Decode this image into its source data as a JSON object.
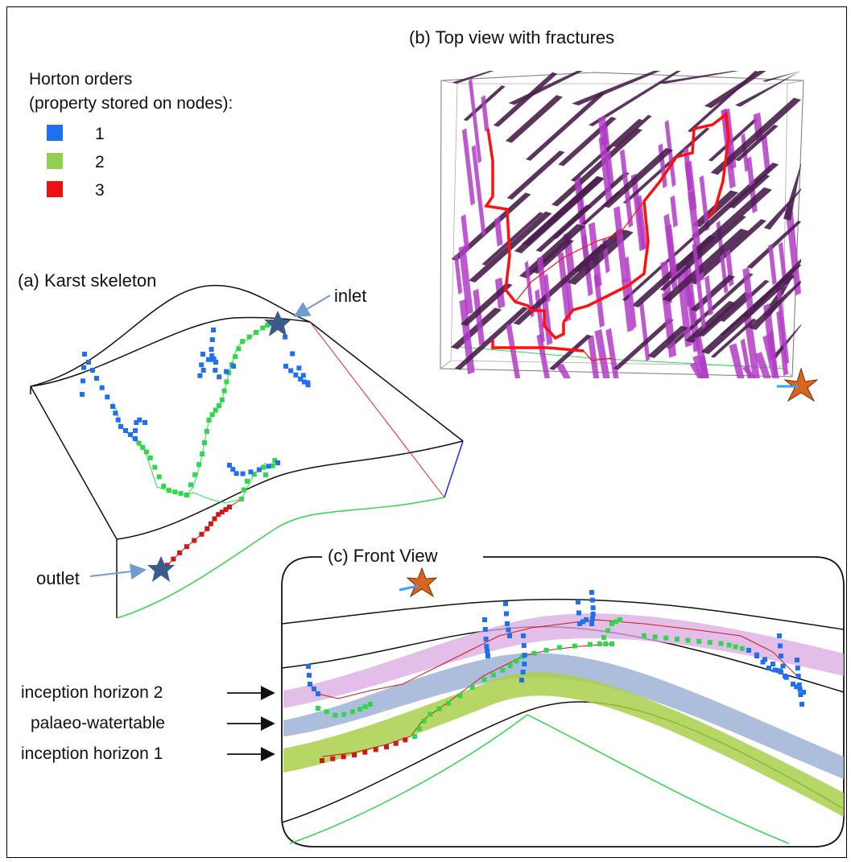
{
  "legend": {
    "title_line1": "Horton orders",
    "title_line2": "(property stored on nodes):",
    "entries": [
      {
        "label": "1",
        "color": "#1f6ff0"
      },
      {
        "label": "2",
        "color": "#8fd14f"
      },
      {
        "label": "3",
        "color": "#ee1111"
      }
    ]
  },
  "panel_a": {
    "title": "(a) Karst skeleton",
    "inlet_label": "inlet",
    "outlet_label": "outlet"
  },
  "panel_b": {
    "title": "(b) Top view with fractures",
    "fracture_colors": [
      "#b23bc6",
      "#4a1f4e"
    ]
  },
  "panel_c": {
    "title": "(c) Front View",
    "horizon_labels": [
      "inception horizon 2",
      "palaeo-watertable",
      "inception horizon 1"
    ],
    "band_colors": [
      "#d9a8e0",
      "#9fb3d6",
      "#a9cf4a"
    ]
  },
  "colors": {
    "order1": "#1f6ff0",
    "order2": "#2fd84a",
    "order3": "#d01818",
    "star": "#3c5a8a",
    "arrow": "#6f9bd1",
    "box_green": "#2fd84a"
  }
}
